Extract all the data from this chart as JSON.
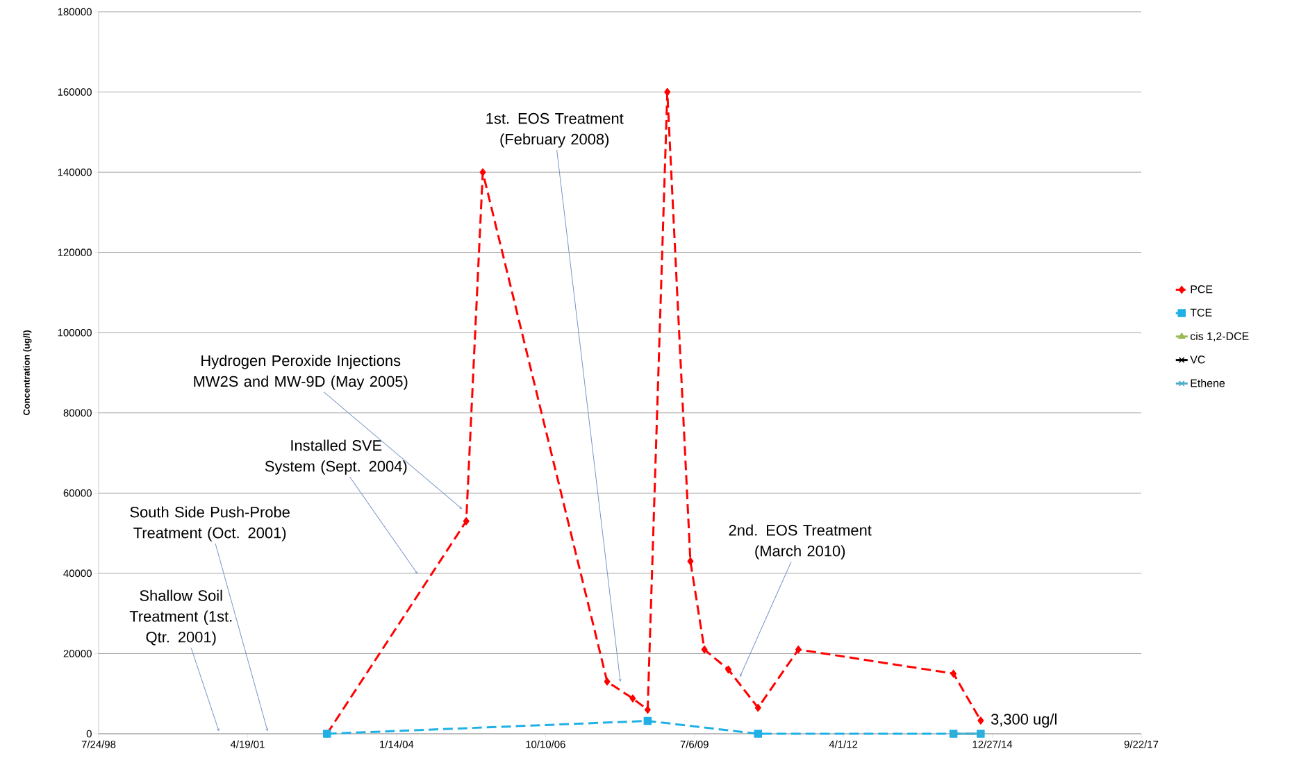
{
  "chart_data": {
    "type": "line",
    "ylabel": "Concentration (ug/l)",
    "xlim": [
      "1998-07-24",
      "2017-09-22"
    ],
    "xticks": [
      {
        "value": "1998-07-24",
        "label": "7/24/98"
      },
      {
        "value": "2001-04-19",
        "label": "4/19/01"
      },
      {
        "value": "2004-01-14",
        "label": "1/14/04"
      },
      {
        "value": "2006-10-10",
        "label": "10/10/06"
      },
      {
        "value": "2009-07-06",
        "label": "7/6/09"
      },
      {
        "value": "2012-04-01",
        "label": "4/1/12"
      },
      {
        "value": "2014-12-27",
        "label": "12/27/14"
      },
      {
        "value": "2017-09-22",
        "label": "9/22/17"
      }
    ],
    "ylim": [
      0,
      180000
    ],
    "yticks": [
      0,
      20000,
      40000,
      60000,
      80000,
      100000,
      120000,
      140000,
      160000,
      180000
    ],
    "grid": "y",
    "legend": "right",
    "series": [
      {
        "name": "PCE",
        "color": "#ff0000",
        "line_style": "dashed",
        "marker": "diamond",
        "x": [
          "2002-10-04",
          "2005-04-26",
          "2005-08-15",
          "2007-11-28",
          "2008-05-18",
          "2008-08-26",
          "2009-01-05",
          "2009-06-09",
          "2009-09-11",
          "2010-02-19",
          "2010-09-06",
          "2011-06-04",
          "2014-04-10",
          "2014-10-10"
        ],
        "values": [
          0,
          53000,
          140000,
          13000,
          8800,
          6000,
          160000,
          43000,
          21000,
          16000,
          6500,
          21000,
          15000,
          3300
        ]
      },
      {
        "name": "TCE",
        "color": "#1fb0e6",
        "line_style": "dashed",
        "marker": "square",
        "x": [
          "2002-10-04",
          "2008-08-26",
          "2010-09-06",
          "2014-04-10",
          "2014-10-10"
        ],
        "values": [
          0,
          3200,
          0,
          0,
          0
        ]
      },
      {
        "name": "cis 1,2-DCE",
        "color": "#9bbb59",
        "line_style": "solid",
        "marker": "triangle"
      },
      {
        "name": "VC",
        "color": "#000000",
        "line_style": "solid",
        "marker": "cross"
      },
      {
        "name": "Ethene",
        "color": "#4bacc6",
        "line_style": "solid",
        "marker": "cross",
        "x": [
          "2014-04-10",
          "2014-10-10"
        ],
        "values": [
          0,
          0
        ]
      }
    ],
    "annotations": [
      "Shallow Soil Treatment (1st. Qtr. 2001)",
      "South Side Push-Probe Treatment (Oct. 2001)",
      "Installed SVE System (Sept. 2004)",
      "Hydrogen Peroxide Injections MW2S and MW-9D (May 2005)",
      "1st. EOS Treatment (February 2008)",
      "2nd. EOS Treatment (March 2010)",
      {
        "text": "3,300 ug/l",
        "x": "2014-10-10",
        "y": 3300
      }
    ]
  }
}
